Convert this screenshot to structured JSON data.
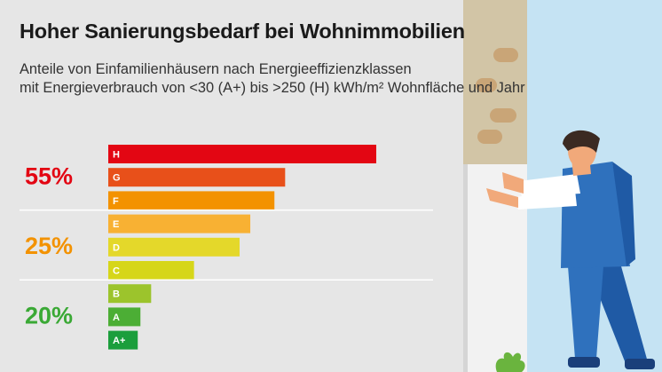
{
  "title": "Hoher Sanierungsbedarf bei Wohnimmobilien",
  "subtitle_line1": "Anteile von Einfamilienhäusern nach Energieeffizienzklassen",
  "subtitle_line2": "mit Energieverbrauch von <30 (A+) bis >250 (H) kWh/m² Wohnfläche und Jahr",
  "colors": {
    "background": "#e6e6e6",
    "group_red": "#e30613",
    "group_orange": "#f39200",
    "group_green": "#3aa935"
  },
  "chart_data": {
    "type": "bar",
    "orientation": "horizontal",
    "title": "Hoher Sanierungsbedarf bei Wohnimmobilien",
    "categories": [
      "H",
      "G",
      "F",
      "E",
      "D",
      "C",
      "B",
      "A",
      "A+"
    ],
    "values": [
      100,
      66,
      62,
      53,
      49,
      32,
      16,
      12,
      11
    ],
    "bar_colors": [
      "#e30613",
      "#e8501a",
      "#f39200",
      "#f8b133",
      "#e4d82a",
      "#d6d619",
      "#9cc42c",
      "#4cae35",
      "#1b9e3c"
    ],
    "value_scale": "relative bar length (no axis printed)",
    "groups": [
      {
        "label": "55%",
        "categories": [
          "H",
          "G",
          "F"
        ],
        "color": "#e30613"
      },
      {
        "label": "25%",
        "categories": [
          "E",
          "D",
          "C"
        ],
        "color": "#f39200"
      },
      {
        "label": "20%",
        "categories": [
          "B",
          "A",
          "A+"
        ],
        "color": "#3aa935"
      }
    ],
    "grid": false,
    "legend": "none"
  }
}
